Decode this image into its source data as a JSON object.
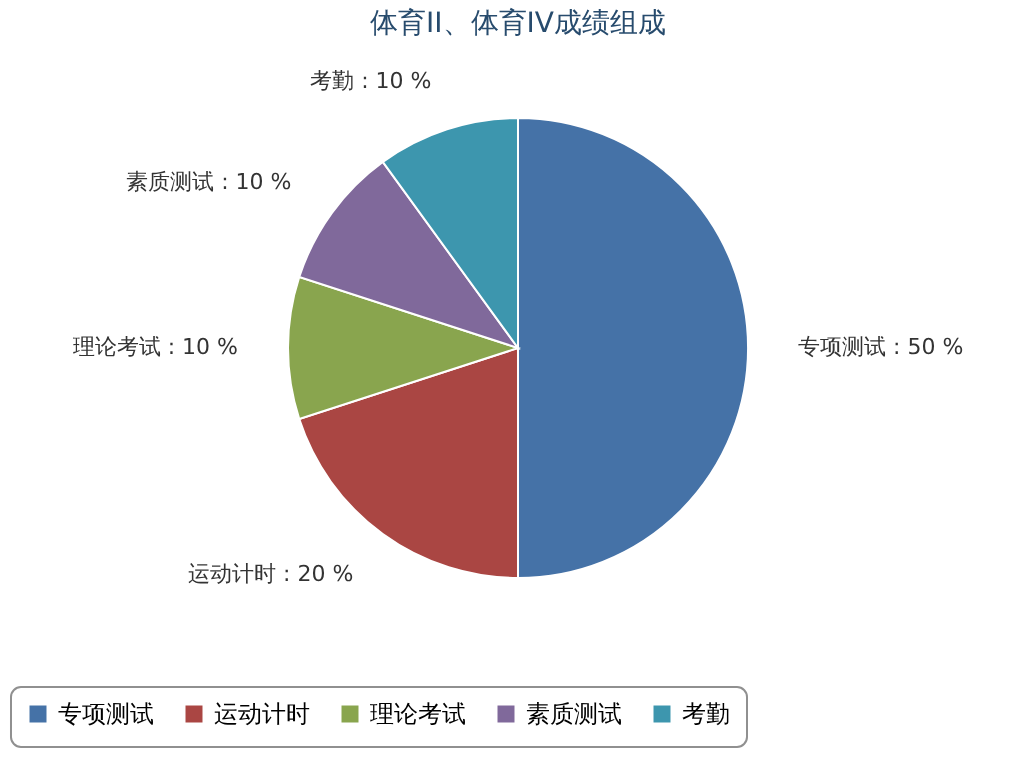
{
  "chart_data": {
    "type": "pie",
    "title": "体育II、体育IV成绩组成",
    "categories": [
      "专项测试",
      "运动计时",
      "理论考试",
      "素质测试",
      "考勤"
    ],
    "values": [
      50,
      20,
      10,
      10,
      10
    ],
    "colors": [
      "#4572a7",
      "#aa4643",
      "#89a54e",
      "#80699b",
      "#3d96ae"
    ],
    "value_labels": [
      ": 50 %",
      ": 20 %",
      ": 10 %",
      ": 10 %",
      ": 10 %"
    ],
    "legend": "bottom"
  }
}
